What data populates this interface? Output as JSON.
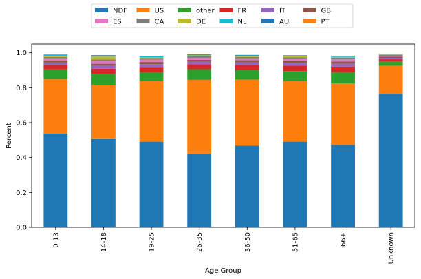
{
  "chart_data": {
    "type": "bar",
    "stacked": true,
    "title": "",
    "xlabel": "Age Group",
    "ylabel": "Percent",
    "ylim": [
      0,
      1.05
    ],
    "yticks": [
      0.0,
      0.2,
      0.4,
      0.6,
      0.8,
      1.0
    ],
    "ytick_labels": [
      "0.0",
      "0.2",
      "0.4",
      "0.6",
      "0.8",
      "1.0"
    ],
    "categories": [
      "0-13",
      "14-18",
      "19-25",
      "26-35",
      "36-50",
      "51-65",
      "66+",
      "Unknown"
    ],
    "grid": false,
    "legend_placement": "top-center, above plot, 6 columns",
    "legend_order": [
      "NDF",
      "US",
      "other",
      "FR",
      "IT",
      "GB",
      "ES",
      "CA",
      "DE",
      "NL",
      "AU",
      "PT"
    ],
    "series": [
      {
        "name": "NDF",
        "color": "#1f77b4",
        "values": [
          0.537,
          0.506,
          0.491,
          0.423,
          0.469,
          0.491,
          0.473,
          0.765
        ]
      },
      {
        "name": "US",
        "color": "#ff7f0e",
        "values": [
          0.314,
          0.311,
          0.346,
          0.422,
          0.377,
          0.346,
          0.351,
          0.16
        ]
      },
      {
        "name": "other",
        "color": "#2ca02c",
        "values": [
          0.054,
          0.063,
          0.052,
          0.061,
          0.054,
          0.058,
          0.065,
          0.025
        ]
      },
      {
        "name": "FR",
        "color": "#d62728",
        "values": [
          0.025,
          0.029,
          0.03,
          0.028,
          0.03,
          0.031,
          0.032,
          0.013
        ]
      },
      {
        "name": "IT",
        "color": "#9467bd",
        "values": [
          0.014,
          0.016,
          0.016,
          0.014,
          0.015,
          0.016,
          0.016,
          0.008
        ]
      },
      {
        "name": "GB",
        "color": "#8c564b",
        "values": [
          0.011,
          0.012,
          0.012,
          0.012,
          0.012,
          0.013,
          0.013,
          0.006
        ]
      },
      {
        "name": "ES",
        "color": "#e377c2",
        "values": [
          0.013,
          0.016,
          0.014,
          0.011,
          0.011,
          0.011,
          0.012,
          0.006
        ]
      },
      {
        "name": "CA",
        "color": "#7f7f7f",
        "values": [
          0.008,
          0.008,
          0.008,
          0.008,
          0.008,
          0.008,
          0.009,
          0.004
        ]
      },
      {
        "name": "DE",
        "color": "#bcbd22",
        "values": [
          0.005,
          0.017,
          0.006,
          0.006,
          0.005,
          0.005,
          0.005,
          0.003
        ]
      },
      {
        "name": "NL",
        "color": "#17becf",
        "values": [
          0.007,
          0.005,
          0.005,
          0.004,
          0.004,
          0.004,
          0.004,
          0.002
        ]
      },
      {
        "name": "AU",
        "color": "#1f77b4",
        "values": [
          0.002,
          0.003,
          0.002,
          0.002,
          0.002,
          0.002,
          0.002,
          0.001
        ]
      },
      {
        "name": "PT",
        "color": "#ff7f0e",
        "values": [
          0.001,
          0.001,
          0.001,
          0.001,
          0.001,
          0.001,
          0.001,
          0.001
        ]
      }
    ]
  }
}
